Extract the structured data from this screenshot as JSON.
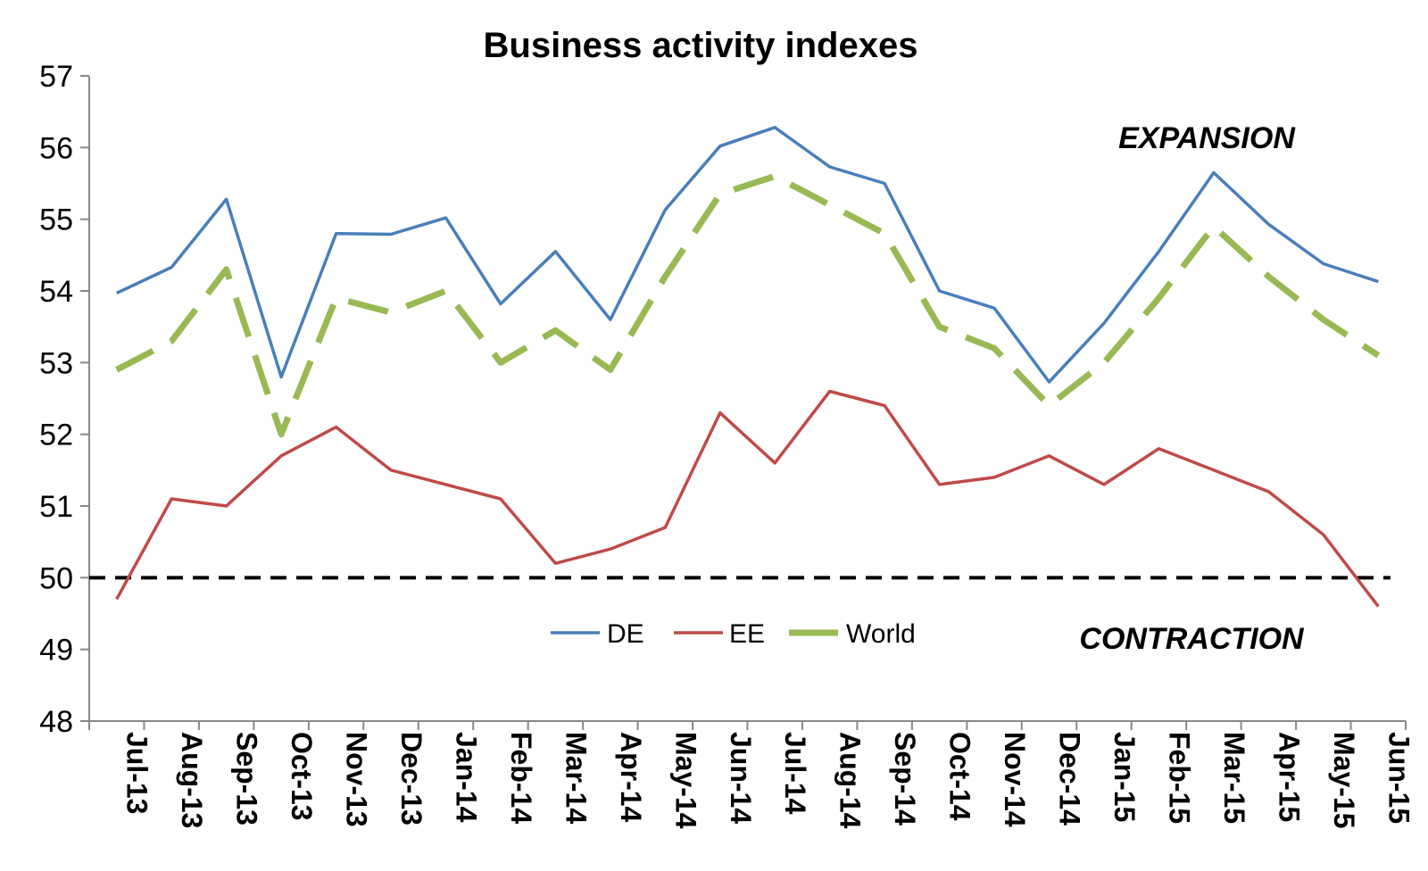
{
  "chart_data": {
    "type": "line",
    "title": "Business activity indexes",
    "xlabel": "",
    "ylabel": "",
    "ylim": [
      48,
      57
    ],
    "yticks": [
      "48",
      "49",
      "50",
      "51",
      "52",
      "53",
      "54",
      "55",
      "56",
      "57"
    ],
    "categories": [
      "Jul-13",
      "Aug-13",
      "Sep-13",
      "Oct-13",
      "Nov-13",
      "Dec-13",
      "Jan-14",
      "Feb-14",
      "Mar-14",
      "Apr-14",
      "May-14",
      "Jun-14",
      "Jul-14",
      "Aug-14",
      "Sep-14",
      "Oct-14",
      "Nov-14",
      "Dec-14",
      "Jan-15",
      "Feb-15",
      "Mar-15",
      "Apr-15",
      "May-15",
      "Jun-15"
    ],
    "series": [
      {
        "name": "DE",
        "color": "#4a7ebb",
        "style": "solid",
        "values": [
          53.97,
          54.33,
          55.28,
          52.8,
          54.8,
          54.79,
          55.02,
          53.82,
          54.55,
          53.6,
          55.13,
          56.02,
          56.28,
          55.73,
          55.5,
          54.0,
          53.76,
          52.73,
          53.55,
          54.55,
          55.65,
          54.93,
          54.38,
          54.13
        ]
      },
      {
        "name": "EE",
        "color": "#be4b48",
        "style": "solid",
        "values": [
          49.7,
          51.1,
          51.0,
          51.7,
          52.1,
          51.5,
          51.3,
          51.1,
          50.2,
          50.4,
          50.7,
          52.3,
          51.6,
          52.6,
          52.4,
          51.3,
          51.4,
          51.7,
          51.3,
          51.8,
          51.5,
          51.2,
          50.6,
          49.6
        ]
      },
      {
        "name": "World",
        "color": "#98b954",
        "style": "dashed",
        "values": [
          52.9,
          53.3,
          54.3,
          52.0,
          53.9,
          53.7,
          54.0,
          53.0,
          53.45,
          52.9,
          54.2,
          55.35,
          55.6,
          55.2,
          54.8,
          53.5,
          53.2,
          52.4,
          53.0,
          53.9,
          54.9,
          54.2,
          53.6,
          53.1
        ]
      }
    ],
    "reference_line": {
      "value": 50,
      "style": "dashed",
      "color": "#000000"
    },
    "annotations": [
      {
        "text": "EXPANSION"
      },
      {
        "text": "CONTRACTION"
      }
    ],
    "legend": {
      "placement": "bottom-center inside",
      "entries": [
        "DE",
        "EE",
        "World"
      ]
    }
  }
}
